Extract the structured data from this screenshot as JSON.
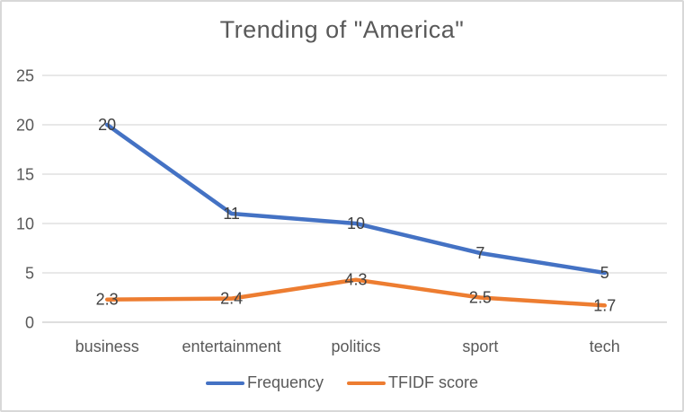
{
  "chart_data": {
    "type": "line",
    "title": "Trending of \"America\"",
    "categories": [
      "business",
      "entertainment",
      "politics",
      "sport",
      "tech"
    ],
    "series": [
      {
        "name": "Frequency",
        "color": "#4472C4",
        "values": [
          20,
          11,
          10,
          7,
          5
        ]
      },
      {
        "name": "TFIDF score",
        "color": "#ED7D31",
        "values": [
          2.3,
          2.4,
          4.3,
          2.5,
          1.7
        ]
      }
    ],
    "xlabel": "",
    "ylabel": "",
    "ylim": [
      0,
      25
    ],
    "yticks": [
      0,
      5,
      10,
      15,
      20,
      25
    ],
    "grid": true,
    "data_labels": true,
    "legend_position": "bottom",
    "colors": {
      "title_text": "#595959",
      "axis_text": "#595959",
      "data_label_text": "#404040",
      "gridline": "#D9D9D9",
      "axis_line": "#C9C9C9",
      "frame_border": "#D8D8D8",
      "background": "#FFFFFF"
    }
  }
}
